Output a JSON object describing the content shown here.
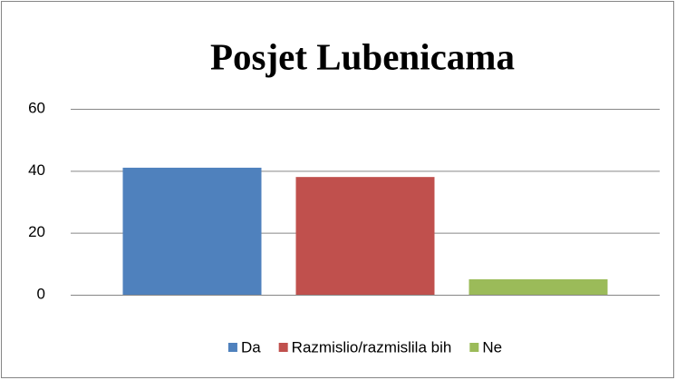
{
  "chart_data": {
    "type": "bar",
    "title": "Posjet Lubenicama",
    "categories": [
      null
    ],
    "series": [
      {
        "name": "Da",
        "color": "#4f81bd",
        "values": [
          41
        ]
      },
      {
        "name": "Razmislio/razmislila bih",
        "color": "#c0504d",
        "values": [
          38
        ]
      },
      {
        "name": "Ne",
        "color": "#9bbb59",
        "values": [
          5
        ]
      }
    ],
    "ylim": [
      0,
      60
    ],
    "yticks": [
      0,
      20,
      40,
      60
    ],
    "grid": true,
    "legend": "bottom"
  }
}
